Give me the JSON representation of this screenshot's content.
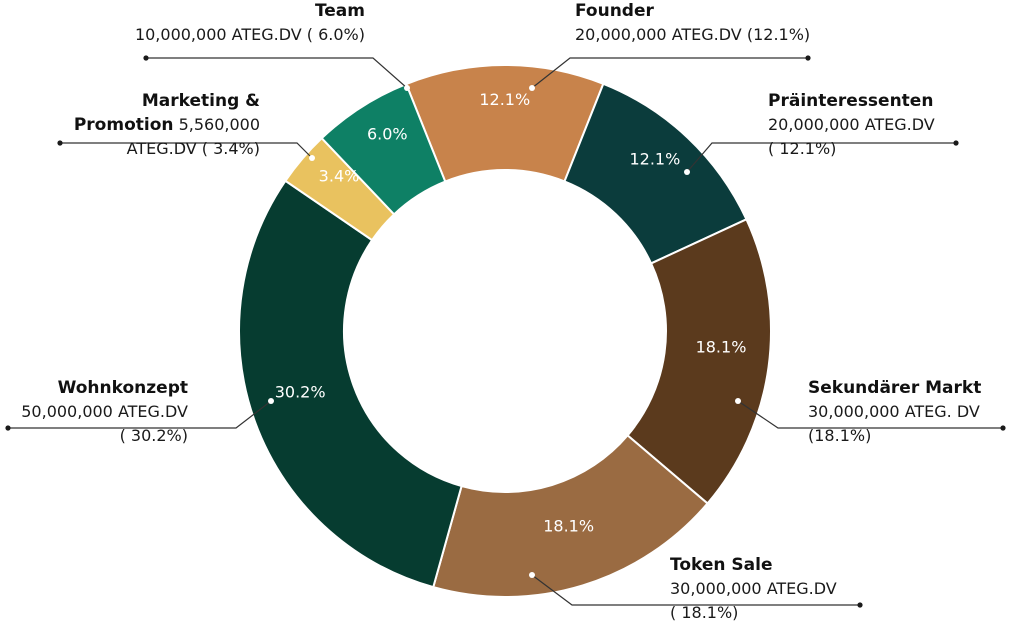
{
  "chart_data": {
    "type": "pie",
    "variant": "donut",
    "unit": "ATEG.DV",
    "segments": [
      {
        "name": "Founder",
        "value": 20000000,
        "percent": 12.1,
        "percent_label": "12.1%",
        "color": "#c8834b",
        "label_lines": [
          {
            "text": "Founder",
            "bold": true
          },
          {
            "text": "20,000,000 ATEG.DV (12.1%)"
          }
        ]
      },
      {
        "name": "Präinteressenten",
        "value": 20000000,
        "percent": 12.1,
        "percent_label": "12.1%",
        "color": "#0b3c3c",
        "label_lines": [
          {
            "text": "Präinteressenten",
            "bold": true
          },
          {
            "text": "20,000,000 ATEG.DV"
          },
          {
            "text": "( 12.1%)"
          }
        ]
      },
      {
        "name": "Sekundärer Markt",
        "value": 30000000,
        "percent": 18.1,
        "percent_label": "18.1%",
        "color": "#5b3a1d",
        "label_lines": [
          {
            "text": "Sekundärer Markt",
            "bold": true
          },
          {
            "text": "30,000,000 ATEG. DV"
          },
          {
            "text": "(18.1%)"
          }
        ]
      },
      {
        "name": "Token Sale",
        "value": 30000000,
        "percent": 18.1,
        "percent_label": "18.1%",
        "color": "#9a6b42",
        "label_lines": [
          {
            "text": "Token Sale",
            "bold": true
          },
          {
            "text": "30,000,000 ATEG.DV"
          },
          {
            "text": "( 18.1%)"
          }
        ]
      },
      {
        "name": "Wohnkonzept",
        "value": 50000000,
        "percent": 30.2,
        "percent_label": "30.2%",
        "color": "#063c30",
        "label_lines": [
          {
            "text": "Wohnkonzept",
            "bold": true
          },
          {
            "text": "50,000,000 ATEG.DV"
          },
          {
            "text": "( 30.2%)"
          }
        ]
      },
      {
        "name": "Marketing & Promotion",
        "value": 5560000,
        "percent": 3.4,
        "percent_label": "3.4%",
        "color": "#e9c25f",
        "label_lines": [
          {
            "text": "Marketing &",
            "bold": true
          },
          {
            "text": "Promotion",
            "bold": true,
            "suffix": " 5,560,000"
          },
          {
            "text": "ATEG.DV ( 3.4%)"
          }
        ]
      },
      {
        "name": "Team",
        "value": 10000000,
        "percent": 6.0,
        "percent_label": "6.0%",
        "color": "#0e8065",
        "label_lines": [
          {
            "text": "Team",
            "bold": true
          },
          {
            "text": "10,000,000 ATEG.DV ( 6.0%)"
          }
        ]
      }
    ]
  }
}
